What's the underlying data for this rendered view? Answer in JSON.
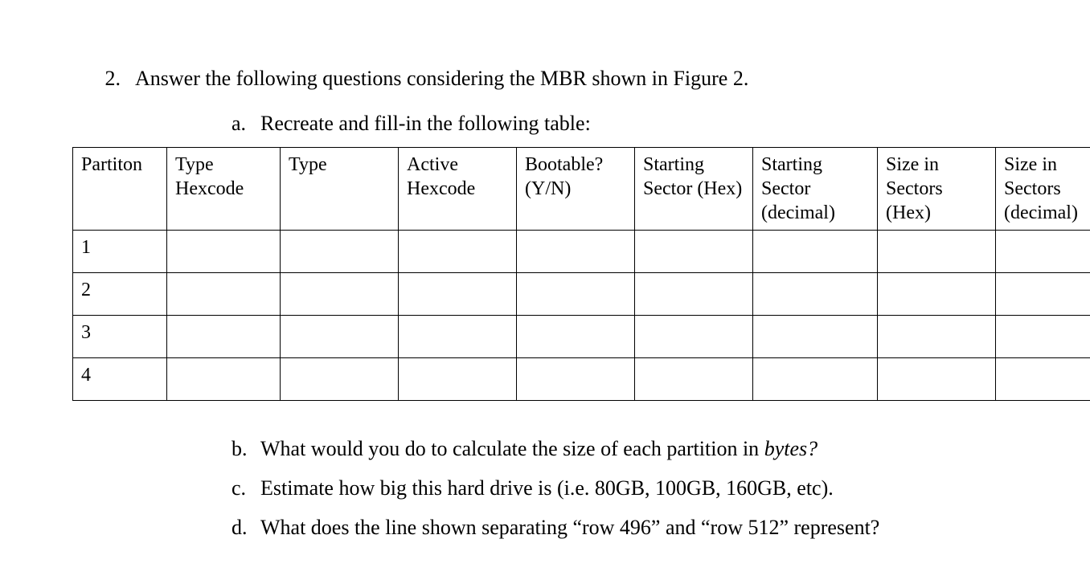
{
  "question": {
    "number": "2.",
    "text": "Answer the following questions considering the MBR shown in Figure 2."
  },
  "sub_a": {
    "letter": "a.",
    "text": "Recreate and fill-in the following table:"
  },
  "table": {
    "columns": [
      "Partiton",
      "Type Hexcode",
      "Type",
      "Active Hexcode",
      "Bootable? (Y/N)",
      "Starting Sector (Hex)",
      "Starting Sector (decimal)",
      "Size in Sectors (Hex)",
      "Size in Sectors (decimal)"
    ],
    "column_widths_class": [
      "col-partition",
      "col-narrow",
      "col-med",
      "col-med",
      "col-med",
      "col-med",
      "col-wide",
      "col-med",
      "col-wide"
    ],
    "rows": [
      [
        "1",
        "",
        "",
        "",
        "",
        "",
        "",
        "",
        ""
      ],
      [
        "2",
        "",
        "",
        "",
        "",
        "",
        "",
        "",
        ""
      ],
      [
        "3",
        "",
        "",
        "",
        "",
        "",
        "",
        "",
        ""
      ],
      [
        "4",
        "",
        "",
        "",
        "",
        "",
        "",
        "",
        ""
      ]
    ],
    "border_color": "#000000",
    "background_color": "#ffffff",
    "font_family": "Times New Roman",
    "header_fontsize": 24,
    "cell_fontsize": 24
  },
  "sub_b": {
    "letter": "b.",
    "text_before": "What would you do to calculate the size of each partition in ",
    "italic_word": "bytes?",
    "text_after": ""
  },
  "sub_c": {
    "letter": "c.",
    "text": "Estimate how big this hard drive is (i.e. 80GB, 100GB, 160GB, etc)."
  },
  "sub_d": {
    "letter": "d.",
    "text": "What does the line shown separating “row 496” and “row 512” represent?"
  }
}
